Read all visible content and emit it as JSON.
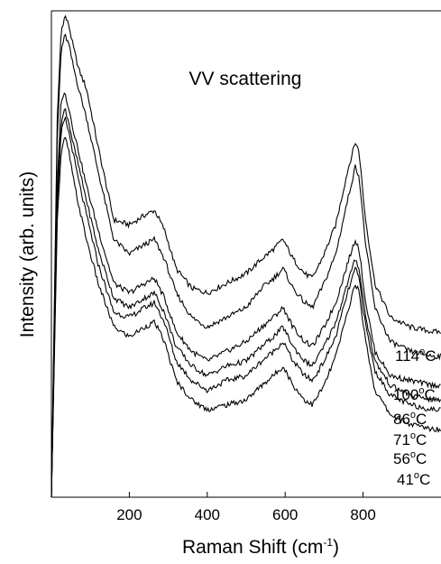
{
  "chart_data": {
    "type": "line",
    "title": "",
    "annotation": "VV scattering",
    "xlabel": "Raman Shift (cm",
    "xlabel_sup": "-1",
    "xlabel_close": ")",
    "ylabel": "Intensity (arb. units)",
    "xlim": [
      0,
      1000
    ],
    "ylim": [
      0,
      100
    ],
    "y_ticks_shown": false,
    "x_ticks": [
      200,
      400,
      600,
      800
    ],
    "x_tick_labels": [
      "200",
      "400",
      "600",
      "800"
    ],
    "grid": false,
    "legend": "inline-right",
    "line_color": "#000000",
    "x": [
      0,
      15,
      25,
      35,
      45,
      55,
      70,
      90,
      120,
      160,
      200,
      240,
      265,
      290,
      320,
      360,
      400,
      450,
      500,
      540,
      570,
      595,
      620,
      650,
      670,
      700,
      730,
      760,
      780,
      790,
      805,
      830,
      870,
      920,
      980
    ],
    "series": [
      {
        "name": "114°C",
        "label_text": "114",
        "label_sup": "o",
        "label_unit": "C",
        "values": [
          0,
          78,
          96,
          99,
          97,
          93,
          88,
          84,
          72,
          57,
          56,
          58,
          59,
          55,
          47,
          43,
          42,
          44,
          46,
          49,
          51,
          53,
          49,
          46,
          45,
          50,
          56,
          67,
          73,
          71,
          58,
          44,
          37,
          35,
          34
        ]
      },
      {
        "name": "100°C",
        "label_text": "100",
        "label_sup": "o",
        "label_unit": "C",
        "values": [
          0,
          74,
          92,
          95,
          93,
          89,
          84,
          78,
          67,
          53,
          50,
          52,
          53,
          49,
          42,
          37,
          35,
          37,
          39,
          43,
          45,
          47,
          43,
          40,
          39,
          44,
          50,
          61,
          68,
          66,
          53,
          39,
          32,
          30,
          29
        ]
      },
      {
        "name": "86°C",
        "label_text": "86",
        "label_sup": "o",
        "label_unit": "C",
        "values": [
          0,
          64,
          82,
          83,
          80,
          76,
          71,
          64,
          55,
          44,
          42,
          44,
          45,
          41,
          34,
          30,
          28,
          30,
          32,
          35,
          37,
          39,
          35,
          32,
          31,
          35,
          40,
          48,
          53,
          51,
          41,
          30,
          25,
          24,
          23
        ]
      },
      {
        "name": "71°C",
        "label_text": "71",
        "label_sup": "o",
        "label_unit": "C",
        "values": [
          0,
          62,
          77,
          80,
          77,
          73,
          68,
          61,
          51,
          41,
          39,
          41,
          42,
          38,
          31,
          27,
          25,
          27,
          28,
          31,
          33,
          35,
          31,
          28,
          27,
          31,
          36,
          44,
          49,
          47,
          38,
          28,
          23,
          21,
          20
        ]
      },
      {
        "name": "56°C",
        "label_text": "56",
        "label_sup": "o",
        "label_unit": "C",
        "values": [
          0,
          60,
          75,
          78,
          75,
          71,
          65,
          58,
          48,
          38,
          37,
          39,
          40,
          36,
          28,
          24,
          22,
          24,
          25,
          28,
          30,
          32,
          28,
          25,
          24,
          28,
          33,
          42,
          47,
          45,
          36,
          26,
          21,
          19,
          18
        ]
      },
      {
        "name": "41°C",
        "label_text": "41",
        "label_sup": "o",
        "label_unit": "C",
        "values": [
          0,
          57,
          71,
          74,
          71,
          66,
          60,
          53,
          44,
          35,
          33,
          35,
          36,
          32,
          24,
          20,
          18,
          19,
          20,
          23,
          25,
          27,
          23,
          20,
          19,
          23,
          29,
          38,
          44,
          42,
          33,
          22,
          17,
          15,
          14
        ]
      }
    ]
  }
}
